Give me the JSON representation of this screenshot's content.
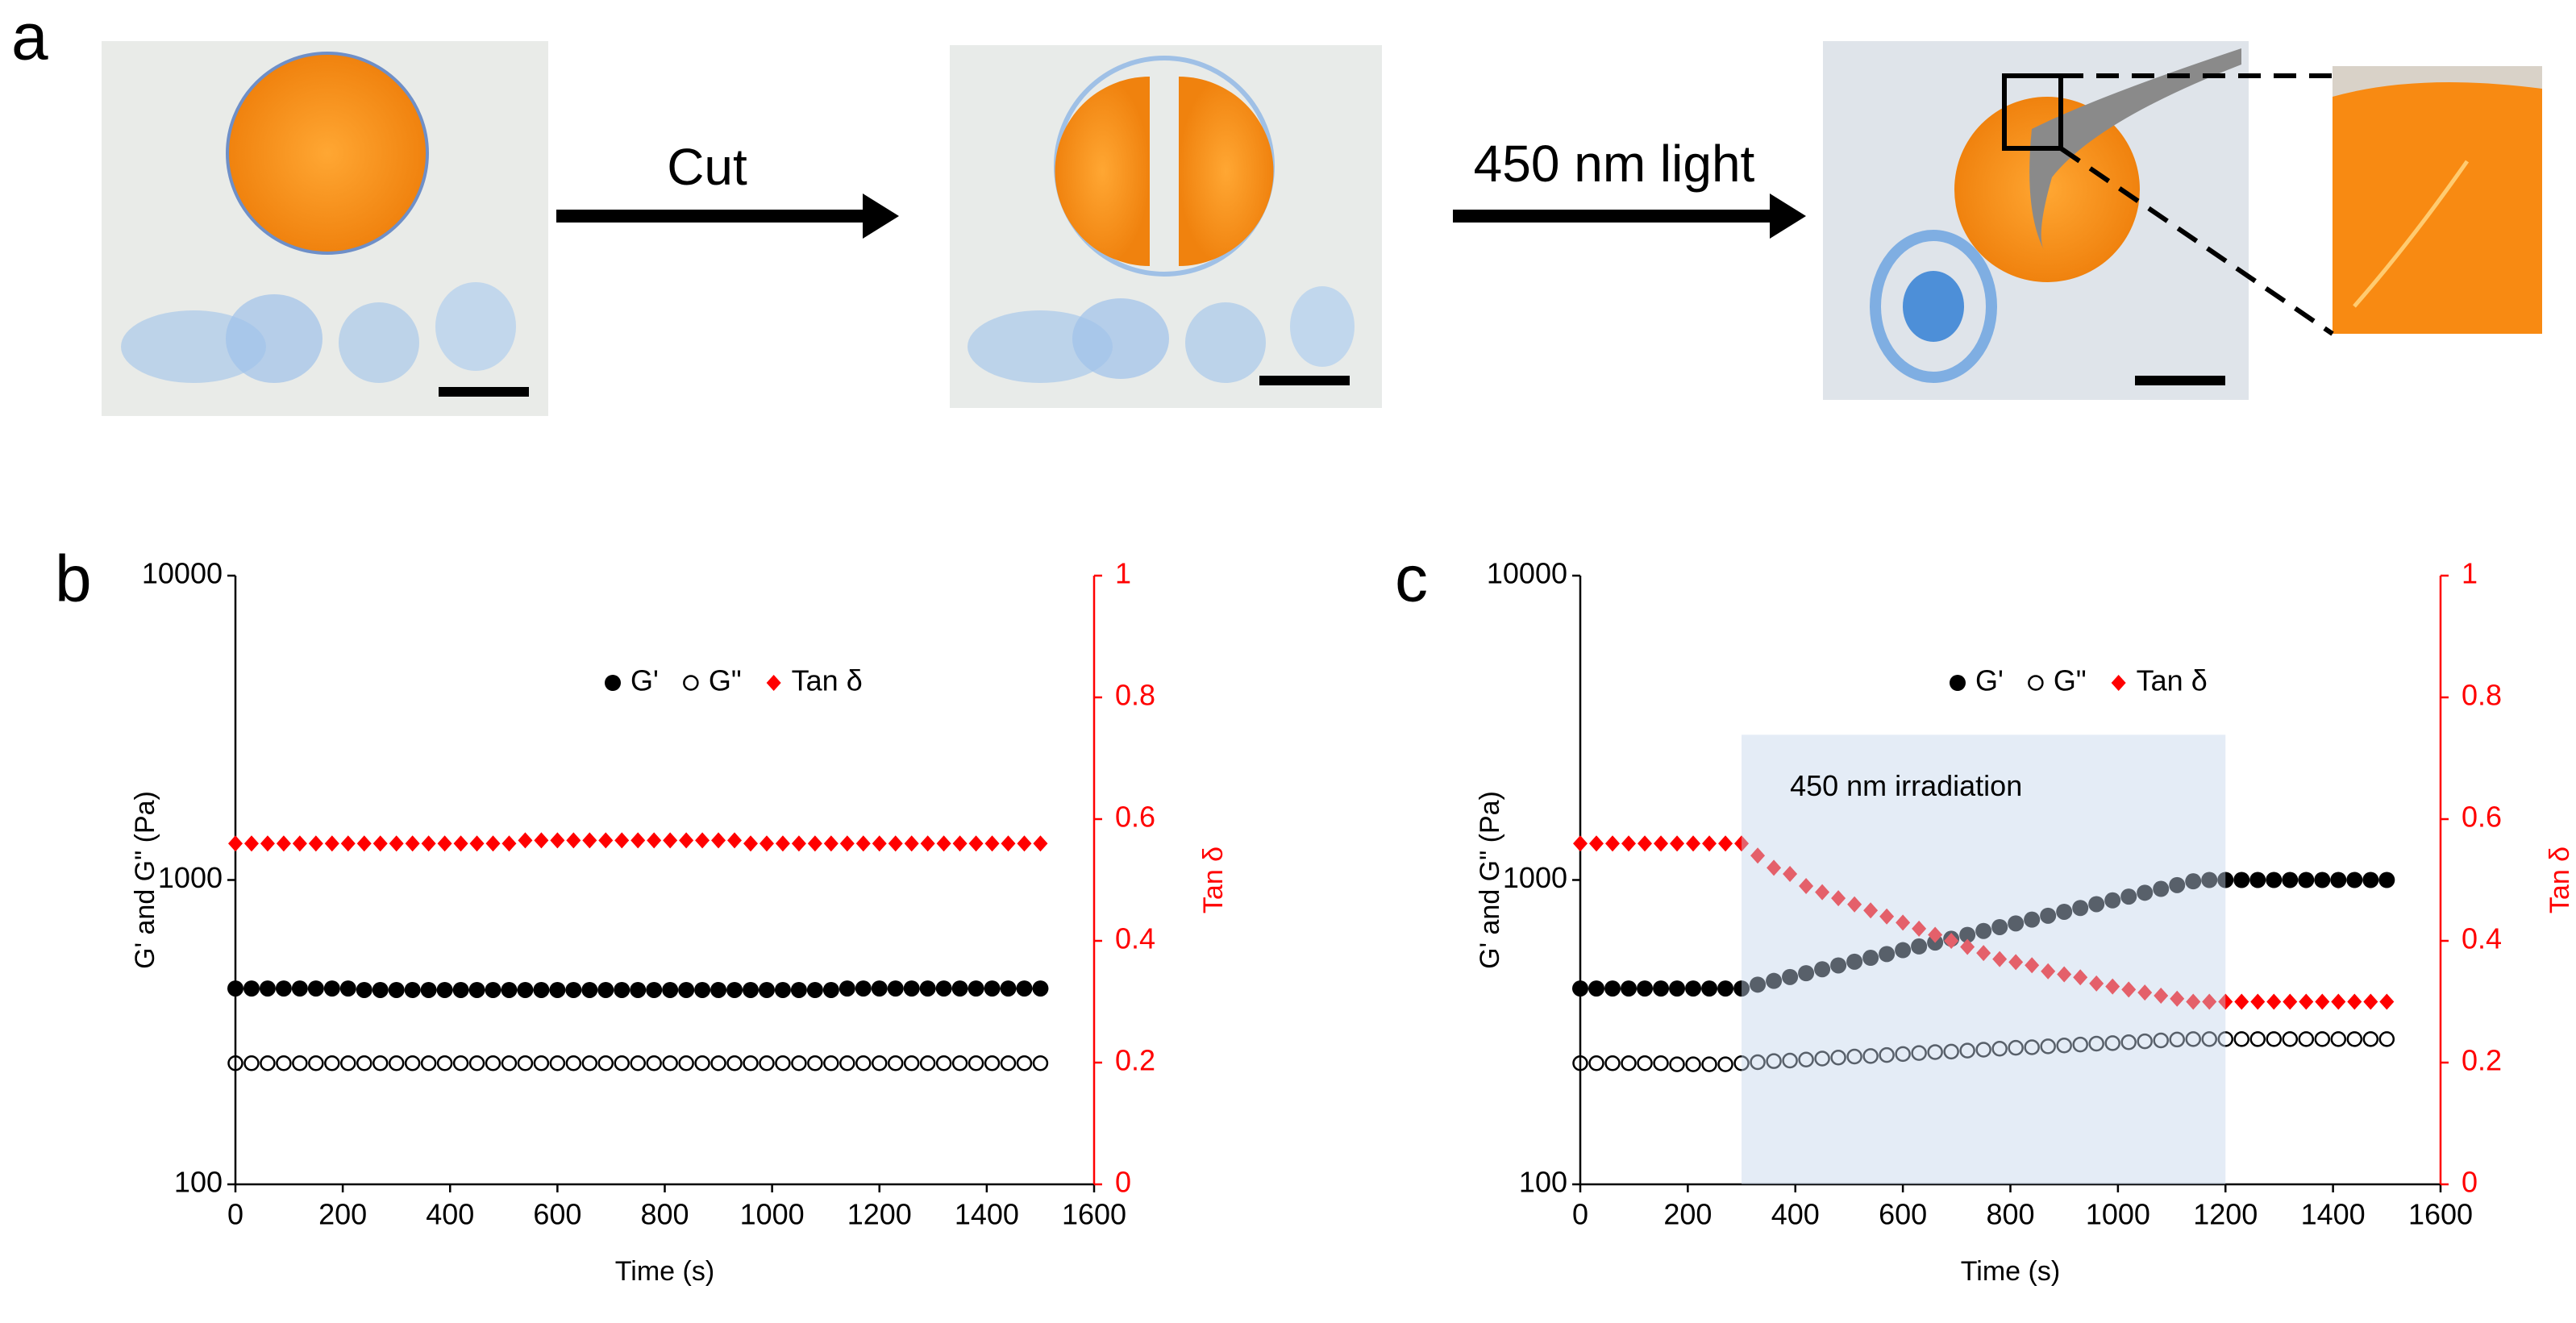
{
  "panel_labels": [
    "a",
    "b",
    "c"
  ],
  "arrows": [
    {
      "label": "Cut"
    },
    {
      "label": "450 nm light"
    }
  ],
  "chart_data": [
    {
      "type": "scatter",
      "x_label": "Time (s)",
      "y_label": "G' and G\" (Pa)",
      "y2_label": "Tan δ",
      "y2_color": "#ff0000",
      "y_scale": "log",
      "xlim": [
        0,
        1600
      ],
      "xticks": [
        0,
        200,
        400,
        600,
        800,
        1000,
        1200,
        1400,
        1600
      ],
      "ylim": [
        100,
        10000
      ],
      "yticks": [
        100,
        1000,
        10000
      ],
      "y2lim": [
        0,
        1
      ],
      "y2ticks": [
        0,
        0.2,
        0.4,
        0.6,
        0.8,
        1
      ],
      "x": [
        0,
        30,
        60,
        90,
        120,
        150,
        180,
        210,
        240,
        270,
        300,
        330,
        360,
        390,
        420,
        450,
        480,
        510,
        540,
        570,
        600,
        630,
        660,
        690,
        720,
        750,
        780,
        810,
        840,
        870,
        900,
        930,
        960,
        990,
        1020,
        1050,
        1080,
        1110,
        1140,
        1170,
        1200,
        1230,
        1260,
        1290,
        1320,
        1350,
        1380,
        1410,
        1440,
        1470,
        1500
      ],
      "series": [
        {
          "name": "G'",
          "color": "#000000",
          "marker": "filled-circle",
          "values": [
            440,
            440,
            440,
            440,
            440,
            440,
            440,
            440,
            435,
            435,
            435,
            435,
            435,
            435,
            435,
            435,
            435,
            435,
            435,
            435,
            435,
            435,
            435,
            435,
            435,
            435,
            435,
            435,
            435,
            435,
            435,
            435,
            435,
            435,
            435,
            435,
            435,
            435,
            440,
            440,
            440,
            440,
            440,
            440,
            440,
            440,
            440,
            440,
            440,
            440,
            440
          ]
        },
        {
          "name": "G\"",
          "color": "#000000",
          "marker": "open-circle",
          "values": [
            250,
            250,
            250,
            250,
            250,
            250,
            250,
            250,
            250,
            250,
            250,
            250,
            250,
            250,
            250,
            250,
            250,
            250,
            250,
            250,
            250,
            250,
            250,
            250,
            250,
            250,
            250,
            250,
            250,
            250,
            250,
            250,
            250,
            250,
            250,
            250,
            250,
            250,
            250,
            250,
            250,
            250,
            250,
            250,
            250,
            250,
            250,
            250,
            250,
            250,
            250
          ]
        },
        {
          "name": "Tan δ",
          "color": "#ff0000",
          "marker": "diamond",
          "axis": "y2",
          "values": [
            0.56,
            0.56,
            0.56,
            0.56,
            0.56,
            0.56,
            0.56,
            0.56,
            0.56,
            0.56,
            0.56,
            0.56,
            0.56,
            0.56,
            0.56,
            0.56,
            0.56,
            0.56,
            0.565,
            0.565,
            0.565,
            0.565,
            0.565,
            0.565,
            0.565,
            0.565,
            0.565,
            0.565,
            0.565,
            0.565,
            0.565,
            0.565,
            0.56,
            0.56,
            0.56,
            0.56,
            0.56,
            0.56,
            0.56,
            0.56,
            0.56,
            0.56,
            0.56,
            0.56,
            0.56,
            0.56,
            0.56,
            0.56,
            0.56,
            0.56,
            0.56
          ]
        }
      ]
    },
    {
      "type": "scatter",
      "x_label": "Time (s)",
      "y_label": "G' and G\" (Pa)",
      "y2_label": "Tan δ",
      "y2_color": "#ff0000",
      "y_scale": "log",
      "xlim": [
        0,
        1600
      ],
      "xticks": [
        0,
        200,
        400,
        600,
        800,
        1000,
        1200,
        1400,
        1600
      ],
      "ylim": [
        100,
        10000
      ],
      "yticks": [
        100,
        1000,
        10000
      ],
      "y2lim": [
        0,
        1
      ],
      "y2ticks": [
        0,
        0.2,
        0.4,
        0.6,
        0.8,
        1
      ],
      "shaded_region": {
        "xlim": [
          300,
          1200
        ],
        "color": "#c3d4ec",
        "label": "450 nm irradiation"
      },
      "x": [
        0,
        30,
        60,
        90,
        120,
        150,
        180,
        210,
        240,
        270,
        300,
        330,
        360,
        390,
        420,
        450,
        480,
        510,
        540,
        570,
        600,
        630,
        660,
        690,
        720,
        750,
        780,
        810,
        840,
        870,
        900,
        930,
        960,
        990,
        1020,
        1050,
        1080,
        1110,
        1140,
        1170,
        1200,
        1230,
        1260,
        1290,
        1320,
        1350,
        1380,
        1410,
        1440,
        1470,
        1500
      ],
      "series": [
        {
          "name": "G'",
          "color": "#000000",
          "marker": "filled-circle",
          "values": [
            440,
            440,
            440,
            440,
            440,
            440,
            440,
            440,
            440,
            440,
            440,
            453,
            466,
            480,
            494,
            509,
            524,
            539,
            555,
            571,
            588,
            605,
            623,
            641,
            660,
            680,
            700,
            720,
            741,
            763,
            786,
            809,
            833,
            857,
            882,
            908,
            935,
            962,
            990,
            1000,
            1000,
            1000,
            1000,
            1000,
            1000,
            1000,
            1000,
            1000,
            1000,
            1000,
            1000
          ]
        },
        {
          "name": "G\"",
          "color": "#000000",
          "marker": "open-circle",
          "values": [
            250,
            250,
            250,
            250,
            250,
            250,
            248,
            248,
            248,
            248,
            250,
            252,
            254,
            255,
            257,
            259,
            261,
            263,
            264,
            266,
            268,
            270,
            272,
            273,
            275,
            277,
            279,
            281,
            282,
            284,
            286,
            288,
            290,
            291,
            293,
            295,
            297,
            299,
            300,
            300,
            300,
            300,
            300,
            300,
            300,
            300,
            300,
            300,
            300,
            300,
            300
          ]
        },
        {
          "name": "Tan δ",
          "color": "#ff0000",
          "marker": "diamond",
          "axis": "y2",
          "values": [
            0.56,
            0.56,
            0.56,
            0.56,
            0.56,
            0.56,
            0.56,
            0.56,
            0.56,
            0.56,
            0.56,
            0.54,
            0.52,
            0.51,
            0.49,
            0.48,
            0.47,
            0.46,
            0.45,
            0.44,
            0.43,
            0.42,
            0.41,
            0.4,
            0.39,
            0.38,
            0.37,
            0.365,
            0.36,
            0.35,
            0.345,
            0.34,
            0.33,
            0.325,
            0.32,
            0.315,
            0.31,
            0.305,
            0.3,
            0.3,
            0.3,
            0.3,
            0.3,
            0.3,
            0.3,
            0.3,
            0.3,
            0.3,
            0.3,
            0.3,
            0.3
          ]
        }
      ]
    }
  ]
}
